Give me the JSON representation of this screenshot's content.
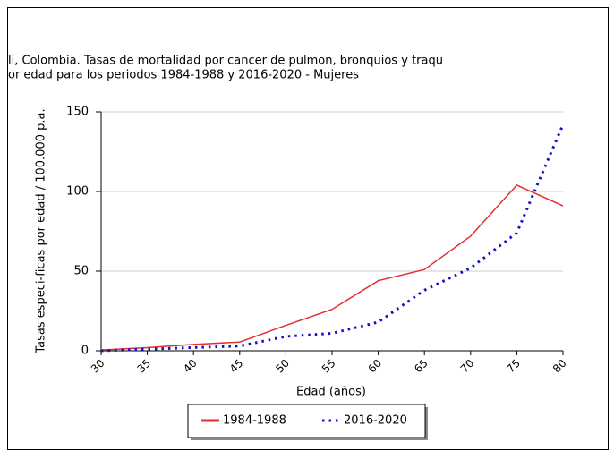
{
  "chart_data": {
    "type": "line",
    "title": "li, Colombia. Tasas de mortalidad por cancer de pulmon, bronquios y traqu",
    "subtitle": "or edad para los periodos 1984-1988 y 2016-2020 - Mujeres",
    "x_label": "Edad (años)",
    "y_label": "Tasas especi-ficas por edad / 100.000 p.a.",
    "x": [
      30,
      35,
      40,
      45,
      50,
      55,
      60,
      65,
      70,
      75,
      80
    ],
    "xlim": [
      30,
      80
    ],
    "xticks": [
      30,
      35,
      40,
      45,
      50,
      55,
      60,
      65,
      70,
      75,
      80
    ],
    "ylim": [
      0,
      150
    ],
    "yticks": [
      0,
      50,
      100,
      150
    ],
    "grid": true,
    "series": [
      {
        "name": "1984-1988",
        "color": "#e03030",
        "style": "solid",
        "values": [
          0.5,
          2,
          4,
          5.5,
          16,
          26,
          44,
          51,
          72,
          104,
          91
        ]
      },
      {
        "name": "2016-2020",
        "color": "#1010cc",
        "style": "dotted",
        "values": [
          0,
          1,
          2,
          3,
          9,
          11,
          18,
          38,
          52,
          74,
          142
        ]
      }
    ]
  }
}
